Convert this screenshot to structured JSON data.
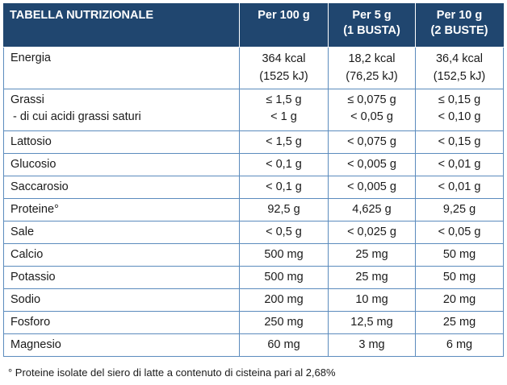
{
  "header": {
    "col1": "TABELLA NUTRIZIONALE",
    "col2": "Per 100 g",
    "col3_line1": "Per 5 g",
    "col3_line2": "(1 BUSTA)",
    "col4_line1": "Per 10 g",
    "col4_line2": "(2 BUSTE)"
  },
  "rows": [
    {
      "name": "Energia",
      "v100": [
        "364 kcal",
        "(1525 kJ)"
      ],
      "v5": [
        "18,2 kcal",
        "(76,25 kJ)"
      ],
      "v10": [
        "36,4 kcal",
        "(152,5 kJ)"
      ]
    },
    {
      "name": "Grassi",
      "name_sub": " - di cui acidi grassi saturi",
      "v100": [
        "≤ 1,5 g",
        "< 1 g"
      ],
      "v5": [
        "≤ 0,075 g",
        "< 0,05 g"
      ],
      "v10": [
        "≤ 0,15 g",
        "< 0,10 g"
      ]
    },
    {
      "name": "Lattosio",
      "v100": "< 1,5 g",
      "v5": "< 0,075 g",
      "v10": "< 0,15 g"
    },
    {
      "name": "Glucosio",
      "v100": "< 0,1 g",
      "v5": "< 0,005 g",
      "v10": "< 0,01 g"
    },
    {
      "name": "Saccarosio",
      "v100": "< 0,1 g",
      "v5": "< 0,005 g",
      "v10": "< 0,01 g"
    },
    {
      "name": "Proteine°",
      "v100": "92,5 g",
      "v5": "4,625 g",
      "v10": "9,25 g"
    },
    {
      "name": "Sale",
      "v100": "< 0,5 g",
      "v5": "< 0,025 g",
      "v10": "< 0,05 g"
    },
    {
      "name": "Calcio",
      "v100": "500 mg",
      "v5": "25 mg",
      "v10": "50 mg"
    },
    {
      "name": "Potassio",
      "v100": "500 mg",
      "v5": "25 mg",
      "v10": "50 mg"
    },
    {
      "name": "Sodio",
      "v100": "200 mg",
      "v5": "10 mg",
      "v10": "20 mg"
    },
    {
      "name": "Fosforo",
      "v100": "250 mg",
      "v5": "12,5 mg",
      "v10": "25 mg"
    },
    {
      "name": "Magnesio",
      "v100": "60 mg",
      "v5": "3 mg",
      "v10": "6 mg"
    }
  ],
  "footnote": "° Proteine isolate del siero di latte a contenuto di cisteina pari al 2,68%",
  "colors": {
    "header_bg": "#20466f",
    "grid_line": "#5b8bbd"
  }
}
